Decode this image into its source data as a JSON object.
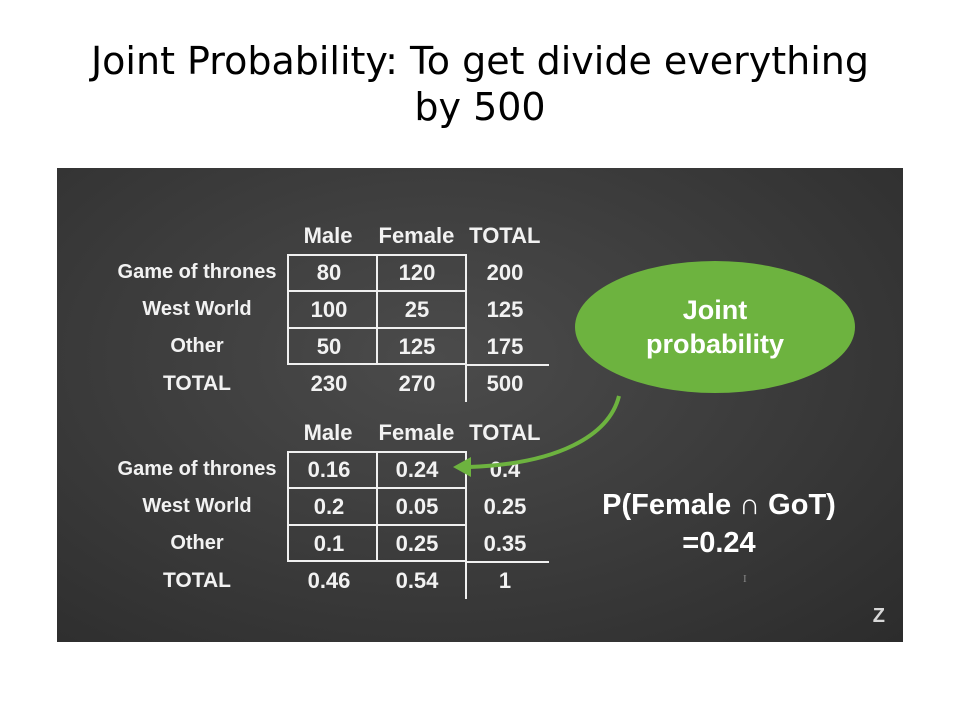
{
  "slide": {
    "title_line1": "Joint Probability: To get divide everything",
    "title_line2": "by 500"
  },
  "table_counts": {
    "headers": [
      "Male",
      "Female",
      "TOTAL"
    ],
    "rows": [
      {
        "label": "Game of thrones",
        "values": [
          "80",
          "120",
          "200"
        ]
      },
      {
        "label": "West World",
        "values": [
          "100",
          "25",
          "125"
        ]
      },
      {
        "label": "Other",
        "values": [
          "50",
          "125",
          "175"
        ]
      },
      {
        "label": "TOTAL",
        "values": [
          "230",
          "270",
          "500"
        ]
      }
    ]
  },
  "table_probs": {
    "headers": [
      "Male",
      "Female",
      "TOTAL"
    ],
    "rows": [
      {
        "label": "Game of thrones",
        "values": [
          "0.16",
          "0.24",
          "0.4"
        ]
      },
      {
        "label": "West World",
        "values": [
          "0.2",
          "0.05",
          "0.25"
        ]
      },
      {
        "label": "Other",
        "values": [
          "0.1",
          "0.25",
          "0.35"
        ]
      },
      {
        "label": "TOTAL",
        "values": [
          "0.46",
          "0.54",
          "1"
        ]
      }
    ]
  },
  "bubble": {
    "line1": "Joint",
    "line2": "probability",
    "color": "#6db33f"
  },
  "formula": {
    "line1": "P(Female ∩ GoT)",
    "line2": "=0.24"
  },
  "logo": {
    "text": "Z"
  },
  "cursor": {
    "glyph": "I"
  }
}
